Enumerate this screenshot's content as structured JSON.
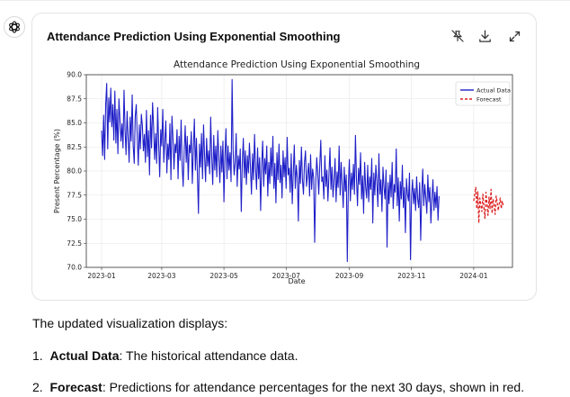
{
  "card": {
    "title": "Attendance Prediction Using Exponential Smoothing",
    "icons": [
      "pin-off-icon",
      "download-icon",
      "expand-icon"
    ]
  },
  "chart_data": {
    "type": "line",
    "title": "Attendance Prediction Using Exponential Smoothing",
    "xlabel": "Date",
    "ylabel": "Present Percentage (%)",
    "ylim": [
      70.0,
      90.0
    ],
    "yticks": [
      70.0,
      72.5,
      75.0,
      77.5,
      80.0,
      82.5,
      85.0,
      87.5,
      90.0
    ],
    "xticks": [
      "2023-01",
      "2023-03",
      "2023-05",
      "2023-07",
      "2023-09",
      "2023-11",
      "2024-01"
    ],
    "grid": true,
    "legend_position": "top-right",
    "series": [
      {
        "name": "Actual Data",
        "color": "#1f1fc8",
        "style": "solid",
        "x_start": "2023-01-01",
        "x_step_days": 1,
        "values": [
          84.2,
          81.6,
          85.8,
          81.2,
          86.9,
          89.1,
          82.3,
          87.6,
          85.1,
          88.6,
          84.6,
          86.9,
          83.2,
          88.3,
          82.9,
          86.4,
          81.8,
          87.5,
          85.3,
          83.1,
          84.9,
          82.4,
          88.4,
          84.3,
          81.7,
          86.2,
          83.5,
          80.9,
          85.6,
          83.1,
          87.9,
          82.6,
          80.8,
          85.7,
          86.9,
          83.4,
          80.6,
          84.8,
          82.3,
          85.9,
          84.7,
          82.1,
          83.8,
          80.9,
          86.3,
          81.5,
          84.2,
          79.6,
          85.8,
          82.4,
          87.1,
          84.6,
          81.2,
          83.9,
          80.8,
          86.6,
          82.7,
          79.4,
          84.3,
          82.6,
          86.4,
          80.9,
          83.1,
          85.2,
          79.8,
          82.8,
          81.2,
          84.9,
          79.1,
          85.7,
          83.4,
          80.2,
          82.8,
          81.9,
          84.3,
          79.2,
          83.6,
          81.1,
          85.3,
          80.6,
          78.4,
          82.1,
          84.7,
          80.9,
          83.6,
          79.1,
          82.7,
          81.9,
          84.1,
          78.7,
          82.3,
          85.4,
          80.1,
          83.4,
          79.6,
          75.6,
          82.8,
          80.4,
          83.9,
          79.2,
          84.8,
          81.6,
          78.9,
          83.4,
          80.5,
          82.1,
          79.7,
          85.6,
          81.4,
          78.6,
          83.7,
          80.1,
          82.6,
          79.4,
          84.2,
          81.3,
          78.8,
          82.6,
          79.9,
          83.1,
          76.8,
          81.5,
          84.4,
          79.2,
          82.6,
          80.1,
          81.9,
          78.9,
          89.5,
          82.1,
          79.6,
          80.8,
          83.9,
          78.4,
          81.6,
          80.2,
          82.3,
          75.8,
          80.8,
          83.4,
          79.3,
          82.1,
          78.6,
          81.6,
          79.8,
          82.9,
          80.4,
          77.6,
          81.8,
          79.1,
          83.8,
          80.3,
          78.1,
          82.4,
          79.2,
          81.4,
          75.9,
          80.6,
          83.1,
          78.4,
          81.3,
          79.7,
          82.6,
          77.4,
          80.9,
          78.7,
          82.4,
          79.5,
          83.6,
          78.2,
          80.8,
          76.7,
          81.9,
          79.1,
          82.8,
          78.8,
          80.6,
          77.2,
          82.1,
          79.4,
          81.4,
          78.2,
          83.5,
          79.6,
          80.3,
          77.8,
          81.8,
          76.6,
          79.8,
          82.7,
          78.2,
          80.6,
          79.3,
          74.8,
          81.1,
          78.7,
          82.5,
          79.1,
          77.6,
          80.9,
          82.1,
          78.4,
          79.6,
          80.8,
          77.4,
          81.7,
          78.1,
          80.2,
          79.3,
          72.6,
          78.6,
          81.4,
          79.8,
          77.6,
          80.6,
          83.2,
          78.9,
          79.4,
          77.1,
          81.6,
          78.4,
          80.1,
          76.9,
          79.6,
          82.4,
          78.1,
          80.4,
          77.3,
          79.1,
          81.3,
          76.8,
          79.9,
          78.3,
          82.6,
          77.5,
          80.9,
          78.6,
          76.2,
          80.4,
          77.9,
          79.6,
          70.6,
          78.4,
          81.2,
          76.9,
          79.8,
          78.1,
          80.7,
          77.6,
          83.7,
          79.2,
          76.4,
          80.3,
          78.6,
          81.9,
          77.1,
          79.5,
          75.6,
          80.9,
          78.3,
          77.2,
          80.6,
          76.8,
          79.4,
          78.1,
          81.3,
          74.6,
          79.8,
          77.5,
          80.6,
          78.9,
          76.3,
          81.8,
          77.6,
          79.1,
          75.8,
          80.4,
          78.3,
          77.1,
          80.1,
          72.1,
          78.8,
          76.6,
          79.6,
          77.3,
          80.9,
          76.1,
          78.6,
          77.8,
          82.3,
          76.4,
          79.3,
          74.8,
          78.9,
          77.1,
          80.6,
          76.2,
          78.3,
          73.6,
          79.2,
          77.6,
          76.9,
          79.8,
          70.8,
          77.4,
          79.1,
          76.6,
          78.2,
          75.9,
          79.4,
          77.1,
          76.2,
          78.8,
          72.8,
          77.6,
          80.2,
          76.4,
          78.6,
          77.2,
          75.6,
          79.6,
          76.8,
          78.3,
          74.6,
          77.1,
          79.1,
          75.9,
          77.8,
          76.2,
          78.4,
          74.9,
          77.4
        ]
      },
      {
        "name": "Forecast",
        "color": "#dd2222",
        "style": "dashed",
        "x_start": "2024-01-01",
        "x_step_days": 1,
        "values": [
          76.9,
          77.6,
          78.3,
          76.1,
          77.9,
          74.6,
          77.2,
          76.4,
          75.8,
          77.6,
          76.2,
          75.1,
          77.8,
          76.6,
          75.4,
          77.3,
          76.1,
          78.1,
          75.6,
          77.1,
          76.5,
          75.5,
          77.4,
          76.8,
          75.9,
          76.6,
          77.2,
          76.1,
          76.9,
          76.3
        ]
      }
    ]
  },
  "body": {
    "intro": "The updated visualization displays:",
    "items": [
      {
        "num": "1.",
        "bold": "Actual Data",
        "rest": ": The historical attendance data."
      },
      {
        "num": "2.",
        "bold": "Forecast",
        "rest": ": Predictions for attendance percentages for the next 30 days, shown in red."
      }
    ]
  }
}
